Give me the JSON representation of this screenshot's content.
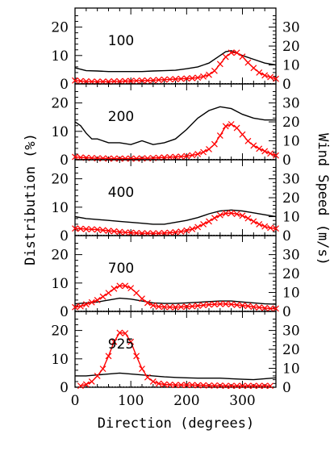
{
  "chart_data": {
    "type": "line",
    "xlabel": "Direction (degrees)",
    "ylabel_left": "Distribution (%)",
    "ylabel_right": "Wind Speed (m/s)",
    "xlim": [
      0,
      360
    ],
    "x_ticks": [
      0,
      100,
      200,
      300
    ],
    "left_ylim": [
      0,
      25
    ],
    "left_ticks": [
      0,
      10,
      20
    ],
    "right_ylim": [
      0,
      37.5
    ],
    "right_ticks": [
      0,
      10,
      20,
      30
    ],
    "series_legend": [
      {
        "name": "",
        "color": "#ff0000",
        "marker": "x",
        "axis": "left"
      },
      {
        "name": "",
        "color": "#000000",
        "marker": "none",
        "axis": "right"
      }
    ],
    "panels": [
      {
        "label": "100",
        "wind_speed": {
          "x": [
            0,
            20,
            40,
            60,
            80,
            100,
            120,
            140,
            160,
            180,
            200,
            220,
            240,
            260,
            270,
            280,
            300,
            320,
            340,
            360
          ],
          "y": [
            8.5,
            7,
            6.8,
            6.5,
            6.5,
            6.5,
            6.5,
            6.8,
            7,
            7.2,
            8,
            9,
            11,
            15,
            17,
            17.5,
            15,
            13,
            11,
            10
          ]
        },
        "distribution": {
          "x": [
            0,
            10,
            20,
            30,
            40,
            50,
            60,
            70,
            80,
            90,
            100,
            110,
            120,
            130,
            140,
            150,
            160,
            170,
            180,
            190,
            200,
            210,
            220,
            230,
            240,
            250,
            260,
            270,
            280,
            290,
            300,
            310,
            320,
            330,
            340,
            350,
            360
          ],
          "y": [
            1.2,
            1,
            0.9,
            0.8,
            0.8,
            0.8,
            0.8,
            0.9,
            0.9,
            1,
            1,
            1.1,
            1.2,
            1.2,
            1.3,
            1.4,
            1.5,
            1.6,
            1.7,
            1.8,
            1.9,
            2,
            2.2,
            2.6,
            3.2,
            4.6,
            7,
            9.5,
            11,
            11,
            9.6,
            7.5,
            5.6,
            4,
            3,
            2.4,
            1.8
          ]
        }
      },
      {
        "label": "200",
        "wind_speed": {
          "x": [
            0,
            10,
            20,
            30,
            40,
            60,
            80,
            100,
            120,
            140,
            160,
            180,
            200,
            220,
            240,
            260,
            280,
            300,
            320,
            340,
            360
          ],
          "y": [
            20,
            18,
            14,
            11,
            11,
            9,
            9,
            8,
            10,
            8,
            9,
            11,
            16,
            22,
            26,
            28,
            27,
            24,
            22,
            21,
            21
          ]
        },
        "distribution": {
          "x": [
            0,
            10,
            20,
            30,
            40,
            50,
            60,
            70,
            80,
            90,
            100,
            110,
            120,
            130,
            140,
            150,
            160,
            170,
            180,
            190,
            200,
            210,
            220,
            230,
            240,
            250,
            260,
            270,
            280,
            290,
            300,
            310,
            320,
            330,
            340,
            350,
            360
          ],
          "y": [
            1,
            0.8,
            0.7,
            0.6,
            0.5,
            0.5,
            0.4,
            0.4,
            0.4,
            0.4,
            0.4,
            0.4,
            0.5,
            0.5,
            0.6,
            0.7,
            0.8,
            0.9,
            1,
            1.1,
            1.3,
            1.6,
            2,
            2.7,
            3.7,
            5.5,
            8.5,
            11.8,
            12.5,
            11.2,
            8.9,
            6.6,
            5,
            3.9,
            3,
            2.2,
            1.5
          ]
        }
      },
      {
        "label": "400",
        "wind_speed": {
          "x": [
            0,
            20,
            40,
            60,
            80,
            100,
            120,
            140,
            160,
            180,
            200,
            220,
            240,
            260,
            280,
            300,
            320,
            340,
            360
          ],
          "y": [
            10,
            9,
            8.5,
            8,
            7.5,
            7,
            6.5,
            6,
            6,
            7,
            8,
            9.5,
            11.5,
            13,
            13.5,
            13,
            12,
            11,
            10
          ]
        },
        "distribution": {
          "x": [
            0,
            10,
            20,
            30,
            40,
            50,
            60,
            70,
            80,
            90,
            100,
            110,
            120,
            130,
            140,
            150,
            160,
            170,
            180,
            190,
            200,
            210,
            220,
            230,
            240,
            250,
            260,
            270,
            280,
            290,
            300,
            310,
            320,
            330,
            340,
            350,
            360
          ],
          "y": [
            2.5,
            2.4,
            2.3,
            2.2,
            2.1,
            1.9,
            1.7,
            1.5,
            1.3,
            1.1,
            1,
            0.9,
            0.8,
            0.8,
            0.8,
            0.8,
            0.9,
            1,
            1.2,
            1.4,
            1.8,
            2.3,
            3,
            4,
            5,
            6.2,
            7.2,
            7.8,
            7.9,
            7.6,
            7,
            6.1,
            5,
            4,
            3.2,
            2.7,
            2.5
          ]
        }
      },
      {
        "label": "700",
        "wind_speed": {
          "x": [
            0,
            20,
            40,
            60,
            80,
            100,
            120,
            140,
            160,
            180,
            200,
            220,
            240,
            260,
            280,
            300,
            320,
            340,
            360
          ],
          "y": [
            4,
            4.5,
            5,
            6,
            7,
            6.5,
            5.5,
            4.5,
            4.2,
            4.2,
            4.5,
            4.8,
            5.2,
            5.5,
            5.5,
            5,
            4.5,
            4,
            3.8
          ]
        },
        "distribution": {
          "x": [
            0,
            10,
            20,
            30,
            40,
            50,
            60,
            70,
            80,
            90,
            100,
            110,
            120,
            130,
            140,
            150,
            160,
            170,
            180,
            190,
            200,
            210,
            220,
            230,
            240,
            250,
            260,
            270,
            280,
            290,
            300,
            310,
            320,
            330,
            340,
            350,
            360
          ],
          "y": [
            1.5,
            1.8,
            2.5,
            3.2,
            4,
            5.2,
            6.5,
            8,
            9,
            9,
            8.2,
            6.5,
            4.5,
            3,
            2.1,
            1.7,
            1.6,
            1.5,
            1.5,
            1.6,
            1.7,
            1.8,
            2,
            2.2,
            2.4,
            2.5,
            2.6,
            2.6,
            2.5,
            2.3,
            2.1,
            1.9,
            1.6,
            1.4,
            1.2,
            1,
            1
          ]
        }
      },
      {
        "label": "925",
        "wind_speed": {
          "x": [
            0,
            20,
            40,
            60,
            80,
            100,
            120,
            140,
            160,
            180,
            200,
            220,
            240,
            260,
            280,
            300,
            320,
            340,
            360
          ],
          "y": [
            6,
            6,
            6.5,
            7,
            7.5,
            7,
            6.5,
            6,
            5.5,
            5.2,
            5,
            4.8,
            4.8,
            4.8,
            4.5,
            4.2,
            4,
            4.5,
            5
          ]
        },
        "distribution": {
          "x": [
            10,
            20,
            30,
            40,
            50,
            60,
            70,
            80,
            90,
            100,
            110,
            120,
            130,
            140,
            150,
            160,
            170,
            180,
            190,
            200,
            210,
            220,
            230,
            240,
            250,
            260,
            270,
            280,
            290,
            300,
            310,
            320,
            330,
            340,
            350
          ],
          "y": [
            0.5,
            1,
            2,
            4,
            6.5,
            11,
            16,
            19.2,
            19,
            16,
            11,
            6.5,
            3.5,
            2,
            1.3,
            1,
            0.9,
            0.8,
            0.8,
            0.8,
            0.8,
            0.7,
            0.7,
            0.6,
            0.6,
            0.6,
            0.5,
            0.5,
            0.5,
            0.5,
            0.5,
            0.5,
            0.5,
            0.5,
            0.5
          ]
        }
      }
    ]
  }
}
